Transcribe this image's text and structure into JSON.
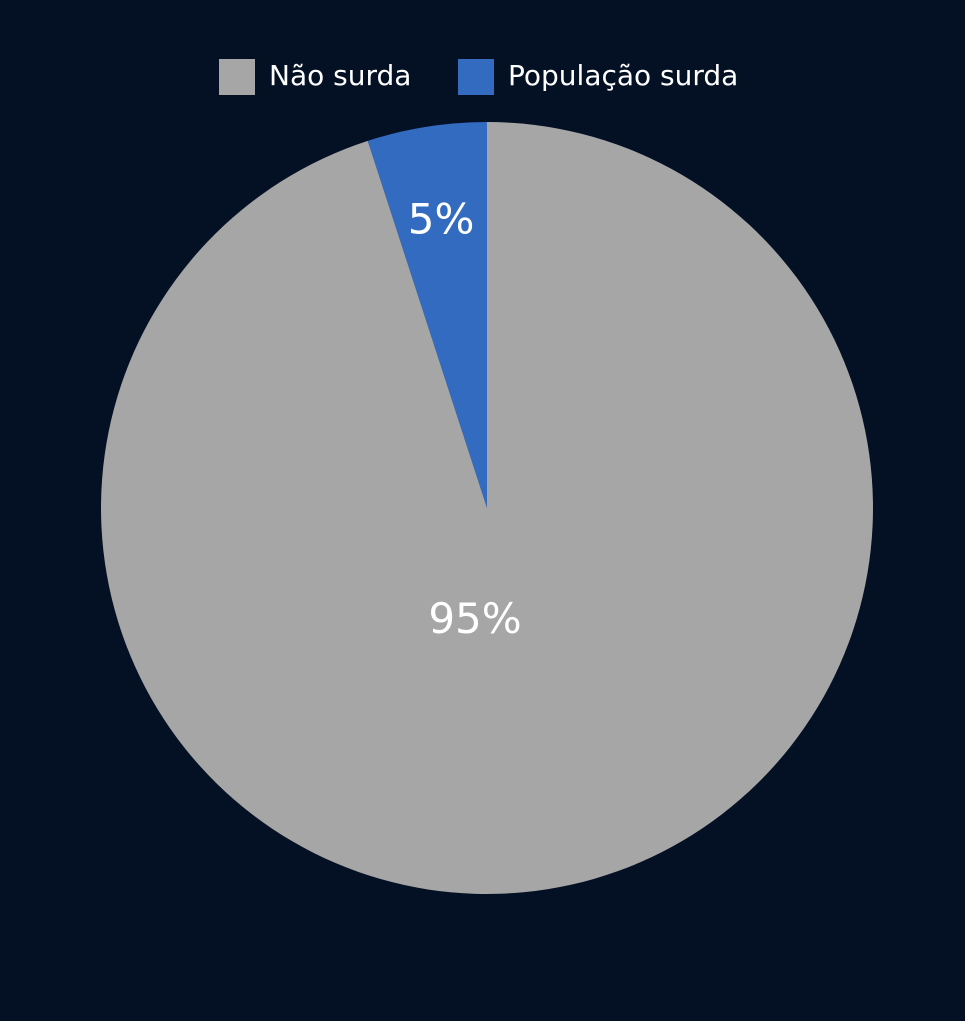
{
  "colors": {
    "background": "#041024",
    "text": "#ffffff"
  },
  "chart_data": {
    "type": "pie",
    "title": "",
    "legend_placement": "top-center",
    "start_angle": "top, clockwise",
    "slices": [
      {
        "name": "Não surda",
        "value": 95,
        "label": "95%",
        "color": "#a6a6a6"
      },
      {
        "name": "População surda",
        "value": 5,
        "label": "5%",
        "color": "#326bbf"
      }
    ]
  }
}
